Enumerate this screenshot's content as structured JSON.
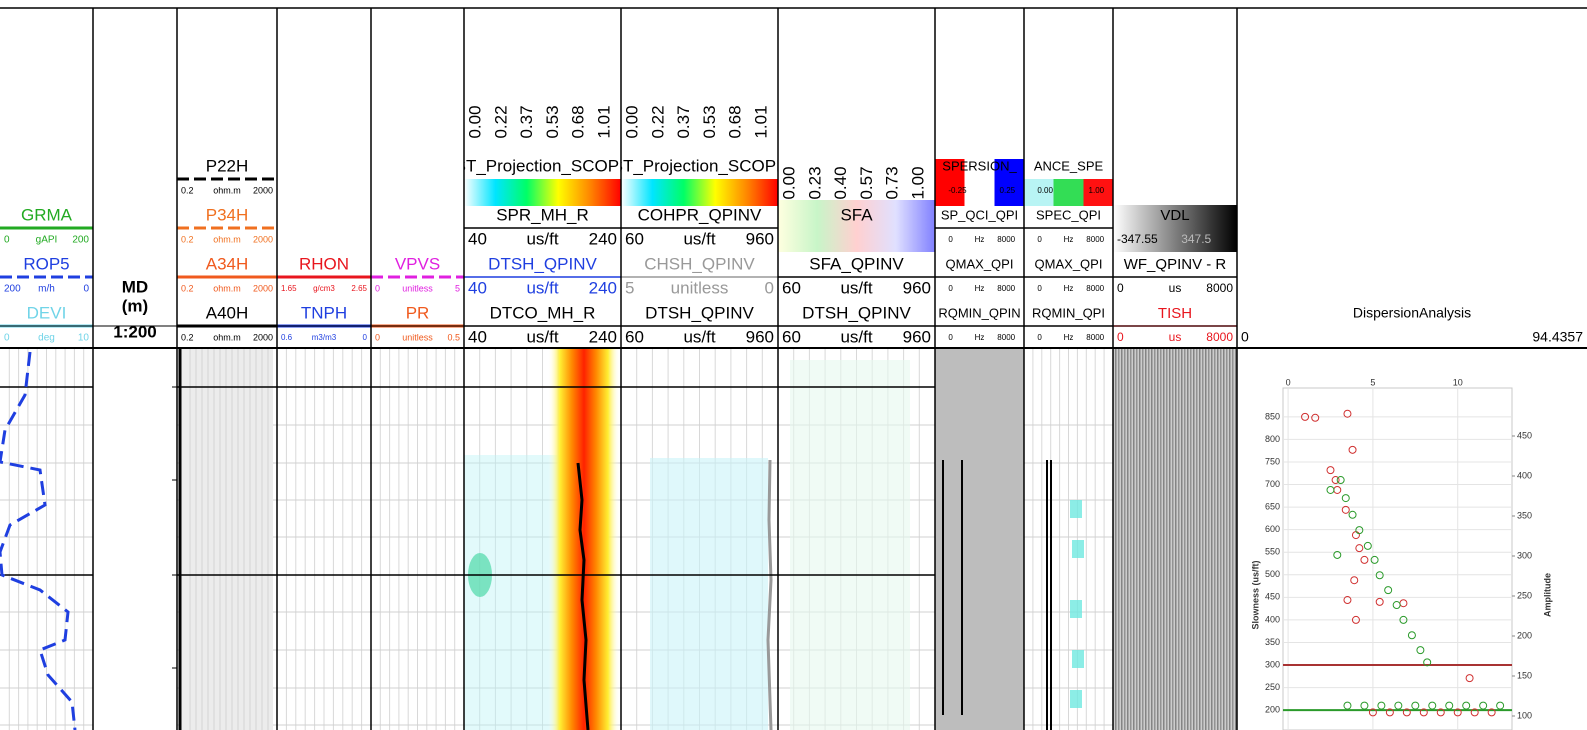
{
  "tracks": [
    {
      "rows": [
        {
          "name": "GRMA",
          "color": "#22aa22",
          "line": "solid",
          "scale": [
            "0",
            "gAPI",
            "200"
          ]
        },
        {
          "name": "ROP5",
          "color": "#1f3fe0",
          "line": "dash",
          "scale": [
            "200",
            "m/h",
            "0"
          ]
        },
        {
          "name": "DEVI",
          "color": "#70d4e8",
          "line": "solid",
          "scale": [
            "0",
            "deg",
            "10"
          ]
        }
      ]
    },
    {
      "labels": [
        "MD",
        "(m)",
        "1:200"
      ]
    },
    {
      "rows": [
        {
          "name": "P22H",
          "color": "#000000",
          "line": "dash",
          "scale": [
            "0.2",
            "ohm.m",
            "2000"
          ]
        },
        {
          "name": "P34H",
          "color": "#f07020",
          "line": "dash",
          "scale": [
            "0.2",
            "ohm.m",
            "2000"
          ]
        },
        {
          "name": "A34H",
          "color": "#f05a1e",
          "line": "solid",
          "scale": [
            "0.2",
            "ohm.m",
            "2000"
          ]
        },
        {
          "name": "A40H",
          "color": "#000000",
          "line": "solid",
          "scale": [
            "0.2",
            "ohm.m",
            "2000"
          ]
        }
      ]
    },
    {
      "rows": [
        {
          "name": "RHON",
          "color": "#e8161e",
          "line": "solid",
          "scale": [
            "1.65",
            "g/cm3",
            "2.65"
          ]
        },
        {
          "name": "TNPH",
          "color": "#1f3fe0",
          "line": "solid",
          "scale": [
            "0.6",
            "m3/m3",
            "0"
          ]
        }
      ]
    },
    {
      "rows": [
        {
          "name": "VPVS",
          "color": "#e020e0",
          "line": "dash",
          "scale": [
            "0",
            "unitless",
            "5"
          ]
        },
        {
          "name": "PR",
          "color": "#f05a1e",
          "line": "solid",
          "scale": [
            "0",
            "unitless",
            "0.5"
          ]
        }
      ]
    },
    {
      "rows": [
        {
          "name": "ST_Projection_SCOPE",
          "ticks": [
            "0.00",
            "0.22",
            "0.37",
            "0.53",
            "0.68",
            "1.01"
          ],
          "colors": [
            "#ffffff",
            "#00e5ff",
            "#00ff66",
            "#ffff00",
            "#ff8800",
            "#ff0000"
          ]
        },
        {
          "name": "SPR_MH_R",
          "color": "#000000",
          "line": "solid",
          "scale": [
            "40",
            "us/ft",
            "240"
          ]
        },
        {
          "name": "DTSH_QPINV",
          "color": "#1f3fe0",
          "line": "solid",
          "scale": [
            "40",
            "us/ft",
            "240"
          ]
        },
        {
          "name": "DTCO_MH_R",
          "color": "#000000",
          "line": "solid",
          "scale": [
            "40",
            "us/ft",
            "240"
          ]
        }
      ]
    },
    {
      "rows": [
        {
          "name": "ST_Projection_SCOPE",
          "ticks": [
            "0.00",
            "0.22",
            "0.37",
            "0.53",
            "0.68",
            "1.01"
          ],
          "colors": [
            "#ffffff",
            "#00e5ff",
            "#00ff66",
            "#ffff00",
            "#ff8800",
            "#ff0000"
          ]
        },
        {
          "name": "COHPR_QPINV",
          "color": "#000000",
          "line": "solid",
          "scale": [
            "60",
            "us/ft",
            "960"
          ]
        },
        {
          "name": "CHSH_QPINV",
          "color": "#999999",
          "line": "solid",
          "scale": [
            "5",
            "unitless",
            "0"
          ]
        },
        {
          "name": "DTSH_QPINV",
          "color": "#000000",
          "line": "solid",
          "scale": [
            "60",
            "us/ft",
            "960"
          ]
        }
      ]
    },
    {
      "rows": [
        {
          "name": "SFA",
          "ticks": [
            "0.00",
            "0.23",
            "0.40",
            "0.57",
            "0.73",
            "1.00"
          ],
          "colors": [
            "#ffffe0",
            "#c8f5c8",
            "#ffd0d0",
            "#e0e0ff",
            "#8080ff"
          ]
        },
        {
          "name": "SFA_QPINV",
          "color": "#000000",
          "line": "solid",
          "scale": [
            "60",
            "us/ft",
            "960"
          ]
        },
        {
          "name": "DTSH_QPINV",
          "color": "#000000",
          "line": "solid",
          "scale": [
            "60",
            "us/ft",
            "960"
          ]
        }
      ]
    },
    {
      "rows": [
        {
          "name": "SPERSION_",
          "colors": [
            "#ff0000",
            "#ffffff",
            "#0000ff"
          ],
          "scale": [
            "-0.25",
            "0.25"
          ]
        },
        {
          "name": "SP_QCI_QPI",
          "color": "#000000",
          "line": "solid",
          "scale": [
            "0",
            "Hz",
            "8000"
          ]
        },
        {
          "name": "QMAX_QPI",
          "color": "#000000",
          "line": "solid",
          "scale": [
            "0",
            "Hz",
            "8000"
          ]
        },
        {
          "name": "RQMIN_QPIN",
          "color": "#000000",
          "line": "solid",
          "scale": [
            "0",
            "Hz",
            "8000"
          ]
        }
      ]
    },
    {
      "rows": [
        {
          "name": "ANCE_SPE",
          "colors": [
            "#b8f4f4",
            "#33dd55",
            "#ff1111"
          ],
          "scale": [
            "0.00",
            "1.00"
          ]
        },
        {
          "name": "SPEC_QPI",
          "color": "#000000",
          "line": "solid",
          "scale": [
            "0",
            "Hz",
            "8000"
          ]
        },
        {
          "name": "QMAX_QPI",
          "color": "#000000",
          "line": "solid",
          "scale": [
            "0",
            "Hz",
            "8000"
          ]
        },
        {
          "name": "RQMIN_QPI",
          "color": "#000000",
          "line": "solid",
          "scale": [
            "0",
            "Hz",
            "8000"
          ]
        }
      ]
    },
    {
      "rows": [
        {
          "name": "VDL",
          "colors": [
            "#ffffff",
            "#000000"
          ],
          "scale": [
            "-347.55",
            "347.5"
          ]
        },
        {
          "name": "WF_QPINV - R",
          "color": "#000000",
          "line": "solid",
          "scale": [
            "0",
            "us",
            "8000"
          ]
        },
        {
          "name": "TISH",
          "color": "#e8161e",
          "line": "solid",
          "scale": [
            "0",
            "us",
            "8000"
          ]
        }
      ]
    },
    {
      "rows": [
        {
          "name": "DispersionAnalysis",
          "color": "#000000",
          "scale": [
            "0",
            "94.4357"
          ]
        }
      ]
    }
  ],
  "crossplot": {
    "type": "scatter",
    "ylabel": "Slowness (us/ft)",
    "y2label": "Amplitude",
    "xlim": [
      -0.3,
      13.2
    ],
    "xticks": [
      0,
      5,
      10
    ],
    "ylim": [
      156,
      914
    ],
    "yticks": [
      850,
      800,
      750,
      700,
      650,
      600,
      550,
      500,
      450,
      400,
      350,
      300,
      250,
      200
    ],
    "y2lim": [
      82.5,
      510
    ],
    "y2ticks": [
      450,
      400,
      350,
      300,
      250,
      200,
      150,
      100
    ],
    "grid": true,
    "hlines": [
      {
        "value": 300,
        "color": "#a83232"
      },
      {
        "value": 200,
        "color": "#2a9a2a"
      }
    ],
    "series": [
      {
        "color": "#d03030",
        "x": [
          1.0,
          1.6,
          3.5,
          2.5,
          2.8,
          2.9,
          3.4,
          4.0,
          4.2,
          4.5,
          3.9,
          3.5,
          4.0,
          5.4,
          6.8,
          10.7,
          3.8,
          5,
          6,
          7,
          8,
          9,
          10,
          11,
          12
        ],
        "y": [
          850,
          848,
          857,
          732,
          710,
          688,
          644,
          588,
          559,
          533,
          488,
          444,
          400,
          440,
          437,
          271,
          777,
          195,
          195,
          195,
          195,
          195,
          195,
          195,
          195
        ]
      },
      {
        "color": "#2a9a2a",
        "x": [
          3.1,
          3.4,
          3.8,
          4.2,
          4.7,
          5.1,
          5.4,
          5.9,
          6.4,
          6.8,
          7.3,
          7.8,
          8.2,
          2.9,
          2.5,
          3.5,
          4.5,
          5.5,
          6.5,
          7.5,
          8.5,
          9.5,
          10.5,
          11.5,
          12.5
        ],
        "y": [
          710,
          670,
          633,
          599,
          564,
          533,
          499,
          466,
          433,
          400,
          366,
          333,
          306,
          544,
          688,
          210,
          210,
          210,
          210,
          210,
          210,
          210,
          210,
          210,
          210
        ]
      }
    ]
  }
}
